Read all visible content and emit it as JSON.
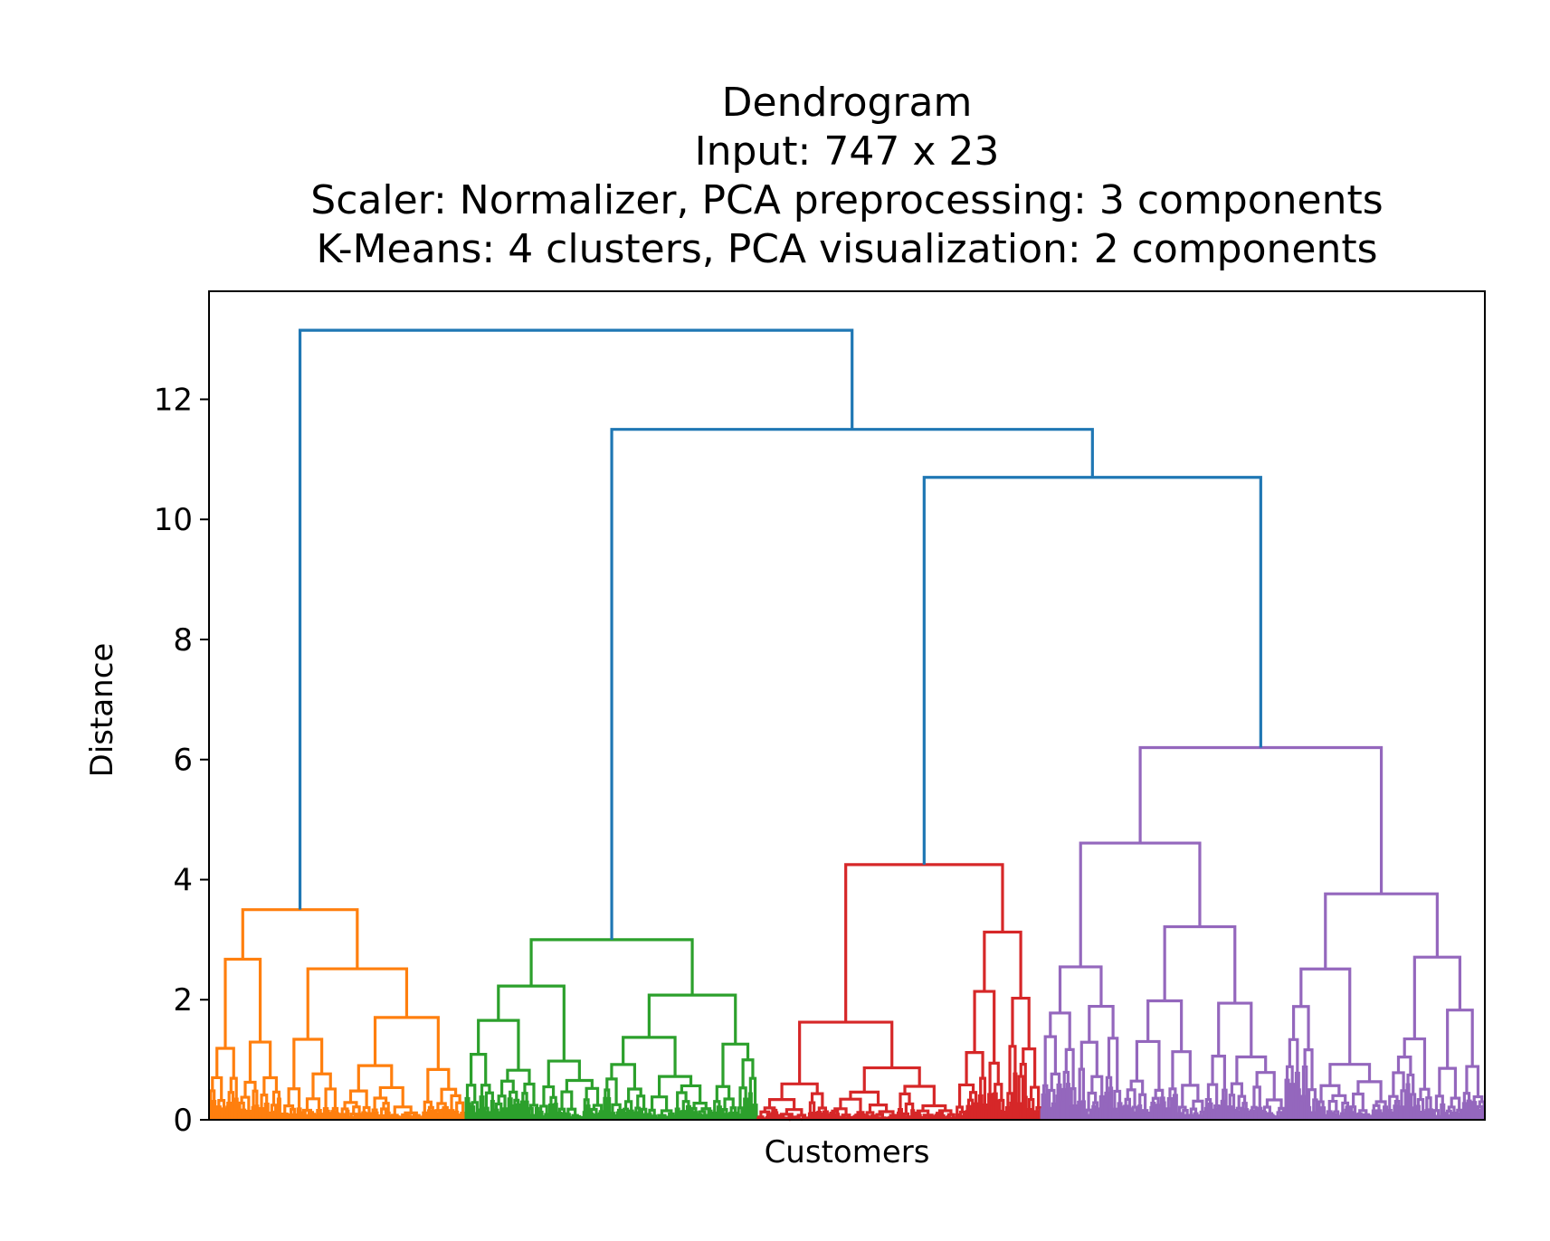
{
  "chart_data": {
    "type": "dendrogram",
    "title_lines": [
      "Dendrogram",
      "Input: 747 x 23",
      "Scaler: Normalizer, PCA preprocessing: 3 components",
      "K-Means: 4 clusters, PCA visualization: 2 components"
    ],
    "xlabel": "Customers",
    "ylabel": "Distance",
    "ylim": [
      0,
      13.8
    ],
    "yticks": [
      0,
      2,
      4,
      6,
      8,
      10,
      12
    ],
    "ytick_labels": [
      "0",
      "2",
      "4",
      "6",
      "8",
      "10",
      "12"
    ],
    "xticks_visible": false,
    "grid": false,
    "n_leaves": 747,
    "link_colors": {
      "above_threshold": "#1f77b4",
      "cluster_1": "#ff7f0e",
      "cluster_2": "#2ca02c",
      "cluster_3": "#d62728",
      "cluster_4": "#9467bd"
    },
    "top_merges": [
      {
        "height": 13.15,
        "left": "cluster_1",
        "right": "merge_11.5"
      },
      {
        "height": 11.5,
        "left": "cluster_2",
        "right": "merge_10.7"
      },
      {
        "height": 10.7,
        "left": "cluster_3",
        "right": "cluster_4"
      }
    ],
    "cluster_roots": [
      {
        "cluster": "cluster_1",
        "height": 3.5
      },
      {
        "cluster": "cluster_2",
        "height": 3.0
      },
      {
        "cluster": "cluster_3",
        "height": 4.25
      },
      {
        "cluster": "cluster_4",
        "height": 6.2
      }
    ]
  }
}
